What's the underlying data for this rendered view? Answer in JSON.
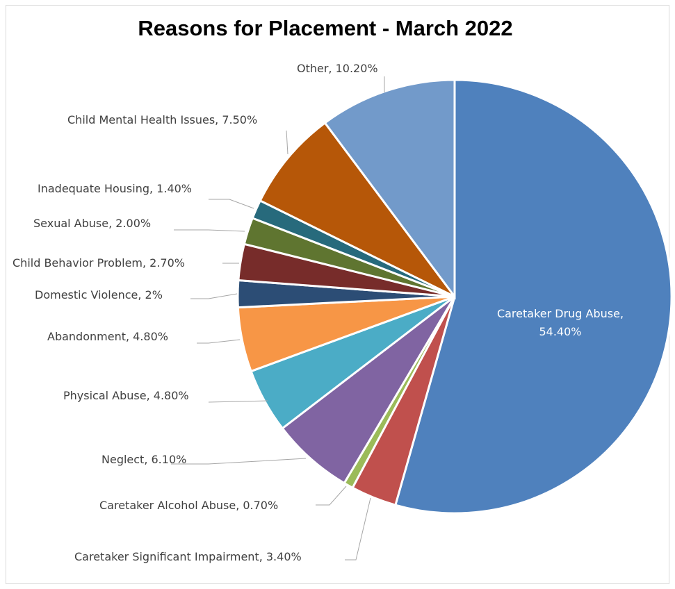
{
  "chart_data": {
    "type": "pie",
    "title": "Reasons for Placement - March 2022",
    "slices": [
      {
        "name": "Caretaker Drug Abuse",
        "value": 54.4,
        "label": "Caretaker Drug Abuse,",
        "label2": "54.40%",
        "color": "#4f81bd"
      },
      {
        "name": "Caretaker Significant Impairment",
        "value": 3.4,
        "label": "Caretaker Significant Impairment, 3.40%",
        "color": "#c0504d"
      },
      {
        "name": "Caretaker Alcohol Abuse",
        "value": 0.7,
        "label": "Caretaker Alcohol Abuse, 0.70%",
        "color": "#9bbb59"
      },
      {
        "name": "Neglect",
        "value": 6.1,
        "label": "Neglect, 6.10%",
        "color": "#8064a2"
      },
      {
        "name": "Physical Abuse",
        "value": 4.8,
        "label": "Physical Abuse, 4.80%",
        "color": "#4bacc6"
      },
      {
        "name": "Abandonment",
        "value": 4.8,
        "label": "Abandonment, 4.80%",
        "color": "#f79646"
      },
      {
        "name": "Domestic Violence",
        "value": 2.0,
        "label": "Domestic Violence, 2%",
        "color": "#2c4d75"
      },
      {
        "name": "Child Behavior Problem",
        "value": 2.7,
        "label": "Child Behavior Problem, 2.70%",
        "color": "#772c2a"
      },
      {
        "name": "Sexual Abuse",
        "value": 2.0,
        "label": "Sexual Abuse, 2.00%",
        "color": "#5f7530"
      },
      {
        "name": "Inadequate Housing",
        "value": 1.4,
        "label": "Inadequate Housing, 1.40%",
        "color": "#276a7c"
      },
      {
        "name": "Child Mental Health Issues",
        "value": 7.5,
        "label": "Child Mental Health Issues, 7.50%",
        "color": "#b65708"
      },
      {
        "name": "Other",
        "value": 10.2,
        "label": "Other, 10.20%",
        "color": "#729aca"
      }
    ]
  }
}
